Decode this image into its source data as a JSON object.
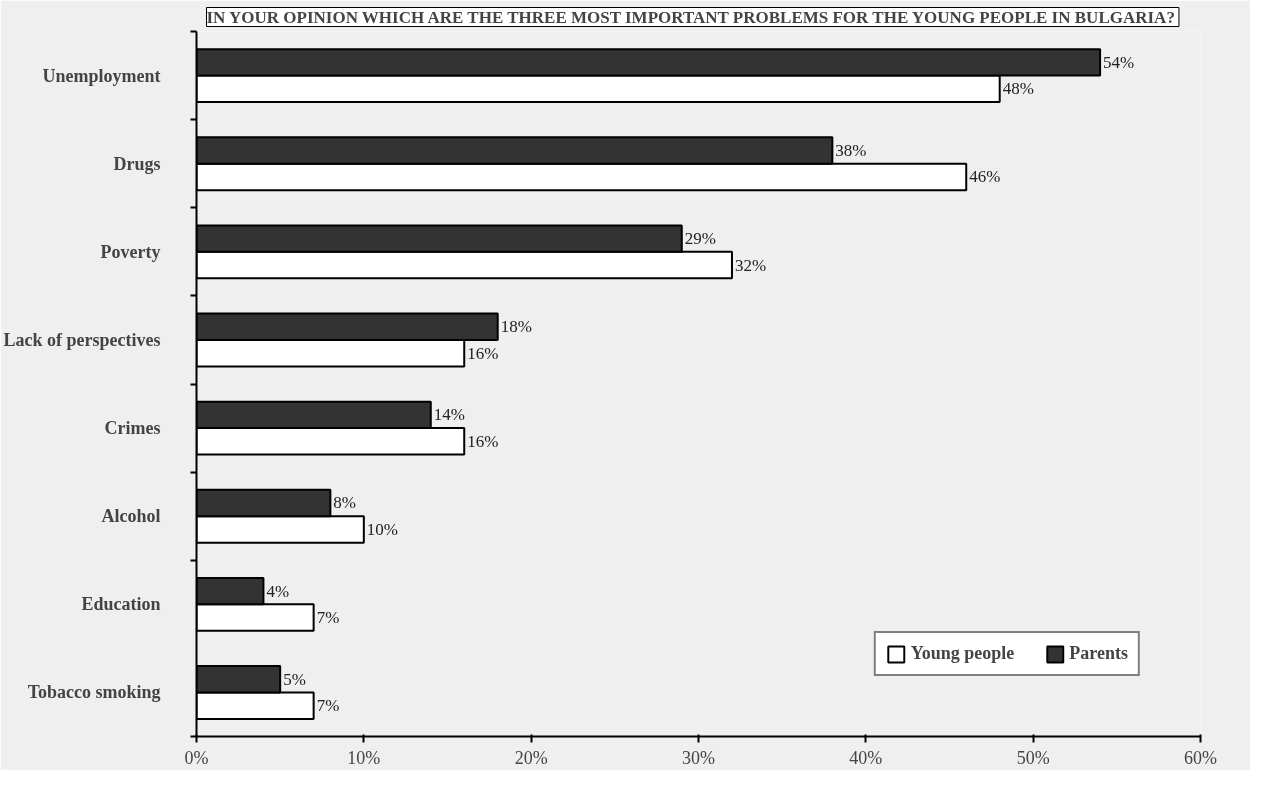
{
  "chart_data": {
    "type": "bar",
    "orientation": "horizontal",
    "title": "IN YOUR OPINION WHICH ARE THE THREE MOST IMPORTANT PROBLEMS FOR THE YOUNG PEOPLE IN BULGARIA?",
    "categories": [
      "Unemployment",
      "Drugs",
      "Poverty",
      "Lack of perspectives",
      "Crimes",
      "Alcohol",
      "Education",
      "Tobacco smoking"
    ],
    "series": [
      {
        "name": "Young people",
        "color": "#ffffff",
        "values": [
          48,
          46,
          32,
          16,
          16,
          10,
          7,
          7
        ],
        "value_labels": [
          "48%",
          "46%",
          "32%",
          "16%",
          "16%",
          "10%",
          "7%",
          "7%"
        ]
      },
      {
        "name": "Parents",
        "color": "#333333",
        "values": [
          54,
          38,
          29,
          18,
          14,
          8,
          4,
          5
        ],
        "value_labels": [
          "54%",
          "38%",
          "29%",
          "18%",
          "14%",
          "8%",
          "4%",
          "5%"
        ]
      }
    ],
    "xlim": [
      0,
      60
    ],
    "xticks": [
      {
        "value": 0,
        "label": "0%"
      },
      {
        "value": 10,
        "label": "10%"
      },
      {
        "value": 20,
        "label": "20%"
      },
      {
        "value": 30,
        "label": "30%"
      },
      {
        "value": 40,
        "label": "40%"
      },
      {
        "value": 50,
        "label": "50%"
      },
      {
        "value": 60,
        "label": "60%"
      }
    ],
    "grid": false,
    "legend": "bottom right"
  }
}
